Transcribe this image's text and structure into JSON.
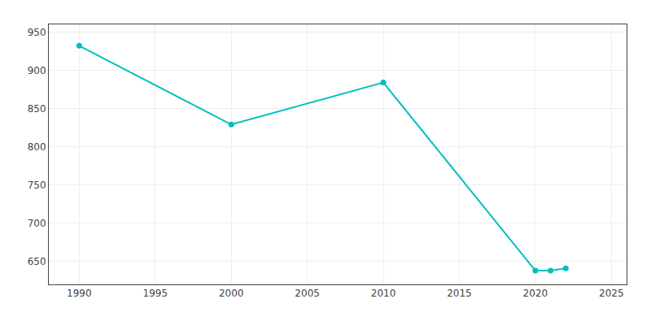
{
  "chart_data": {
    "type": "line",
    "x": [
      1990,
      2000,
      2010,
      2020,
      2021,
      2022
    ],
    "values": [
      932,
      829,
      884,
      638,
      638,
      641
    ],
    "color": "#00BFBF",
    "marker": "circle",
    "line_style": "solid",
    "xlim": [
      1988,
      2026
    ],
    "ylim": [
      620,
      960
    ],
    "xticks": [
      1990,
      1995,
      2000,
      2005,
      2010,
      2015,
      2020,
      2025
    ],
    "yticks": [
      650,
      700,
      750,
      800,
      850,
      900,
      950
    ],
    "grid": true
  }
}
